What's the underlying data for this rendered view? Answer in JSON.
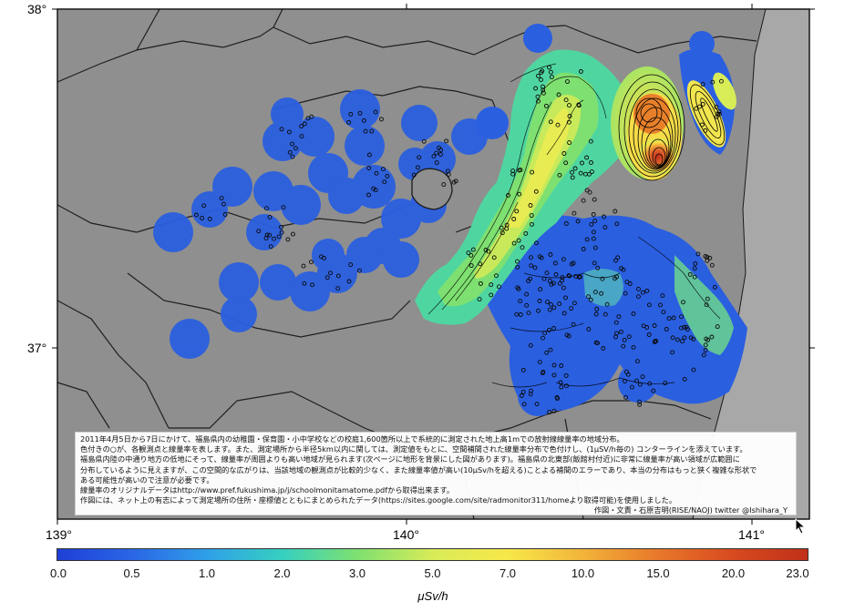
{
  "map": {
    "lat_labels": [
      "38°",
      "37°"
    ],
    "lon_labels": [
      "139°",
      "140°",
      "141°"
    ],
    "sea_color": "#a8a8a8",
    "land_color": "#8f8f8f"
  },
  "notes": {
    "line1": "2011年4月5日から7日にかけて、福島県内の幼稚園・保育園・小中学校などの校庭1,600箇所以上で系統的に測定された地上高1mでの放射線線量率の地域分布。",
    "line2": "色付きの○が、各観測点と線量率を表します。また、測定場所から半径5km以内に関しては、測定値をもとに、空間補間された線量率分布で色付けし、(1μSV/h毎の) コンターラインを添えています。",
    "line3": "福島県内陸の中通り地方の低地にそって、線量率が周囲よりも高い地域が見られます(次ページに地形を背景にした図があります)。福島県の北東部(飯館村付近)に非常に線量率が高い領域が広範囲に",
    "line4": "分布しているように見えますが、この空間的な広がりは、当該地域の観測点が比較的少なく、また線量率値が高い(10μSv/hを超える)ことよる補間のエラーであり、本当の分布はもっと狭く複雑な形状で",
    "line5": "ある可能性が高いので注意が必要です。",
    "line6": "線量率のオリジナルデータはhttp://www.pref.fukushima.jp/j/schoolmonitamatome.pdfから取得出来ます。",
    "line7": "作図には、ネット上の有志によって測定場所の住所・座標値とともにまとめられたデータ(https://sites.google.com/site/radmonitor311/homeより取得可能)を使用しました。",
    "credit": "作図・文責・石原吉明(RISE/NAOJ)   twitter @Ishihara_Y"
  },
  "colorbar": {
    "ticks": [
      "0.0",
      "0.5",
      "1.0",
      "2.0",
      "3.0",
      "5.0",
      "7.0",
      "10.0",
      "15.0",
      "20.0",
      "23.0"
    ],
    "stops": [
      "#1e3fd6",
      "#2a66e6",
      "#2fa0e8",
      "#36d0c0",
      "#7ee070",
      "#d8ec58",
      "#f7e84a",
      "#f2b43a",
      "#e8782a",
      "#d84a20",
      "#c03018"
    ],
    "unit": "μSv/h"
  }
}
